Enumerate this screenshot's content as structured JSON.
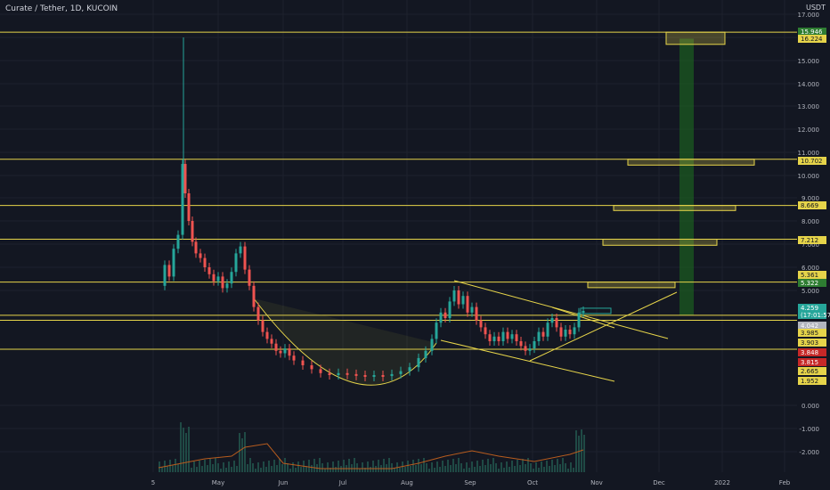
{
  "header": {
    "title": "Curate / Tether, 1D, KUCOIN",
    "currency": "USDT"
  },
  "colors": {
    "background": "#131722",
    "up": "#26a69a",
    "down": "#ef5350",
    "level_line": "#e6d44a",
    "target_band": "#1b5e20"
  },
  "chart_data": {
    "type": "candlestick",
    "title": "Curate / Tether, 1D, KUCOIN",
    "x_tick_labels": [
      "5",
      "May",
      "Jun",
      "Jul",
      "Aug",
      "Sep",
      "Oct",
      "Nov",
      "Dec",
      "2022",
      "Feb"
    ],
    "y_tick_labels": [
      "17.000",
      "16.000",
      "15.000",
      "14.000",
      "13.000",
      "12.000",
      "11.000",
      "10.000",
      "9.000",
      "8.000",
      "7.000",
      "6.000",
      "5.000",
      "0.000",
      "-1.000",
      "-2.000"
    ],
    "horizontal_levels": [
      {
        "value": 16.224,
        "label": "16.224"
      },
      {
        "value": 10.702,
        "label": "10.702"
      },
      {
        "value": 8.669,
        "label": "8.669"
      },
      {
        "value": 7.212,
        "label": "7.212"
      },
      {
        "value": 5.361,
        "label": "5.361"
      },
      {
        "value": 4.1,
        "label": ""
      },
      {
        "value": 3.903,
        "label": "3.903"
      },
      {
        "value": 2.665,
        "label": "2.665"
      }
    ],
    "price_labels": [
      {
        "label": "15.946",
        "color": "#2e7d32"
      },
      {
        "label": "16.224",
        "color": "#e6d44a"
      },
      {
        "label": "10.702",
        "color": "#e6d44a"
      },
      {
        "label": "8.669",
        "color": "#e6d44a"
      },
      {
        "label": "7.212",
        "color": "#e6d44a"
      },
      {
        "label": "5.361",
        "color": "#e6d44a"
      },
      {
        "label": "5.322",
        "color": "#2e7d32"
      },
      {
        "label": "4.259",
        "color": "#26a69a"
      },
      {
        "label": "(17:01:57)",
        "color": "#26a69a"
      },
      {
        "label": "4.042",
        "color": "#b2b5be"
      },
      {
        "label": "3.985",
        "color": "#e6d44a"
      },
      {
        "label": "3.903",
        "color": "#e6d44a"
      },
      {
        "label": "3.848",
        "color": "#c62828"
      },
      {
        "label": "3.815",
        "color": "#c62828"
      },
      {
        "label": "2.665",
        "color": "#e6d44a"
      },
      {
        "label": "1.952",
        "color": "#e6d44a"
      }
    ],
    "last_price": 4.259,
    "target_price": 15.946,
    "indicator": "volume"
  }
}
